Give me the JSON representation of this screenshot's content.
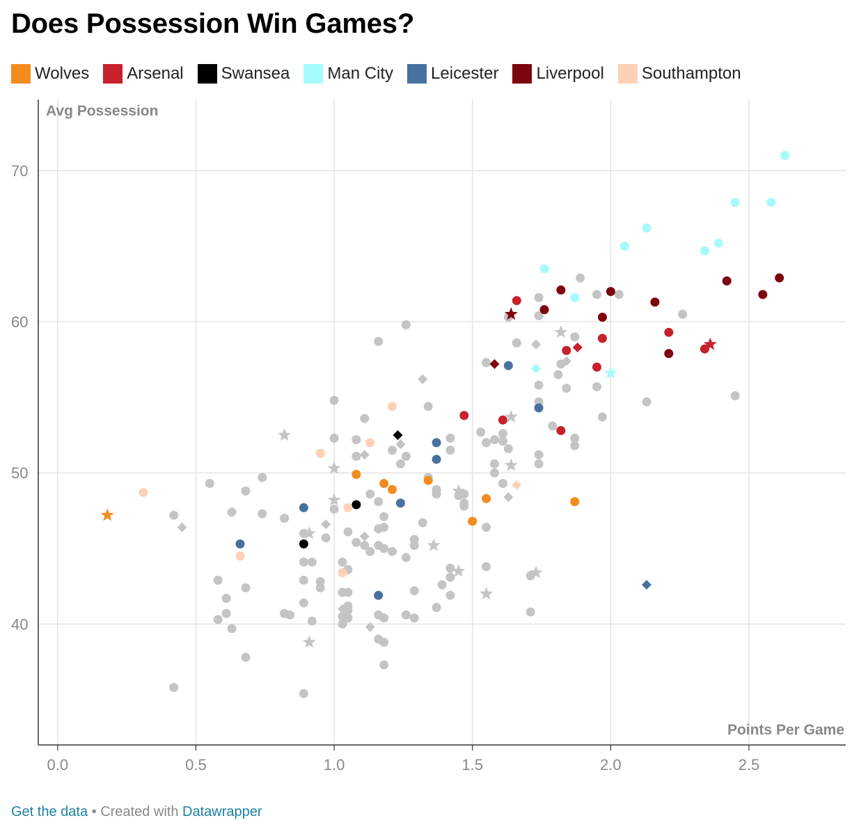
{
  "title": "Does Possession Win Games?",
  "legend": [
    {
      "label": "Wolves",
      "color": "#f28c1f"
    },
    {
      "label": "Arsenal",
      "color": "#c8202c"
    },
    {
      "label": "Swansea",
      "color": "#000000"
    },
    {
      "label": "Man City",
      "color": "#a6fafb"
    },
    {
      "label": "Leicester",
      "color": "#4772a0"
    },
    {
      "label": "Liverpool",
      "color": "#7d0510"
    },
    {
      "label": "Southampton",
      "color": "#fdd1b6"
    }
  ],
  "footer": {
    "get_data": "Get the data",
    "separator": " • Created with ",
    "datawrapper": "Datawrapper"
  },
  "chart_data": {
    "type": "scatter",
    "title": "Does Possession Win Games?",
    "xlabel": "Points Per Game",
    "ylabel": "Avg Possession",
    "xlim": [
      -0.07,
      2.85
    ],
    "ylim": [
      32.0,
      74.7
    ],
    "xticks": [
      "0.0",
      "0.5",
      "1.0",
      "1.5",
      "2.0",
      "2.5"
    ],
    "xtick_values": [
      0,
      0.5,
      1.0,
      1.5,
      2.0,
      2.5
    ],
    "yticks": [
      "40",
      "50",
      "60",
      "70"
    ],
    "ytick_values": [
      40,
      50,
      60,
      70
    ],
    "grid": true,
    "other_color": "#c4c4c4",
    "series": [
      {
        "name": "Other",
        "color": "#c4c4c4",
        "points": [
          [
            0.42,
            35.8,
            "c"
          ],
          [
            0.42,
            47.2,
            "c"
          ],
          [
            0.45,
            46.4,
            "d"
          ],
          [
            0.55,
            49.3,
            "c"
          ],
          [
            0.58,
            42.9,
            "c"
          ],
          [
            0.58,
            40.3,
            "c"
          ],
          [
            0.61,
            41.7,
            "c"
          ],
          [
            0.61,
            40.7,
            "c"
          ],
          [
            0.63,
            47.4,
            "c"
          ],
          [
            0.63,
            39.7,
            "c"
          ],
          [
            0.68,
            48.8,
            "c"
          ],
          [
            0.68,
            42.4,
            "c"
          ],
          [
            0.68,
            37.8,
            "c"
          ],
          [
            0.74,
            49.7,
            "c"
          ],
          [
            0.74,
            47.3,
            "c"
          ],
          [
            0.82,
            52.5,
            "s"
          ],
          [
            0.82,
            47.0,
            "c"
          ],
          [
            0.82,
            40.7,
            "c"
          ],
          [
            0.84,
            40.6,
            "c"
          ],
          [
            0.89,
            46.0,
            "c"
          ],
          [
            0.89,
            44.1,
            "c"
          ],
          [
            0.89,
            42.9,
            "c"
          ],
          [
            0.89,
            41.4,
            "c"
          ],
          [
            0.89,
            35.4,
            "c"
          ],
          [
            0.91,
            46.0,
            "s"
          ],
          [
            0.91,
            38.8,
            "s"
          ],
          [
            0.92,
            44.1,
            "c"
          ],
          [
            0.92,
            40.2,
            "c"
          ],
          [
            0.95,
            42.8,
            "c"
          ],
          [
            0.95,
            42.4,
            "c"
          ],
          [
            0.97,
            46.6,
            "d"
          ],
          [
            0.97,
            45.7,
            "c"
          ],
          [
            1.0,
            54.8,
            "c"
          ],
          [
            1.0,
            52.3,
            "c"
          ],
          [
            1.0,
            50.3,
            "s"
          ],
          [
            1.0,
            48.2,
            "s"
          ],
          [
            1.0,
            47.6,
            "c"
          ],
          [
            1.03,
            44.1,
            "c"
          ],
          [
            1.03,
            43.4,
            "c"
          ],
          [
            1.03,
            42.1,
            "c"
          ],
          [
            1.03,
            41.0,
            "d"
          ],
          [
            1.03,
            40.5,
            "c"
          ],
          [
            1.03,
            40.0,
            "c"
          ],
          [
            1.05,
            46.1,
            "c"
          ],
          [
            1.05,
            43.6,
            "c"
          ],
          [
            1.05,
            42.1,
            "c"
          ],
          [
            1.05,
            41.2,
            "c"
          ],
          [
            1.05,
            40.9,
            "c"
          ],
          [
            1.05,
            40.4,
            "c"
          ],
          [
            1.08,
            52.2,
            "c"
          ],
          [
            1.08,
            51.1,
            "c"
          ],
          [
            1.08,
            45.4,
            "c"
          ],
          [
            1.11,
            53.6,
            "c"
          ],
          [
            1.11,
            51.2,
            "d"
          ],
          [
            1.11,
            45.8,
            "d"
          ],
          [
            1.11,
            45.2,
            "c"
          ],
          [
            1.13,
            48.6,
            "c"
          ],
          [
            1.13,
            44.8,
            "c"
          ],
          [
            1.13,
            39.8,
            "d"
          ],
          [
            1.16,
            58.7,
            "c"
          ],
          [
            1.16,
            48.1,
            "c"
          ],
          [
            1.16,
            46.3,
            "c"
          ],
          [
            1.16,
            45.2,
            "c"
          ],
          [
            1.16,
            40.6,
            "c"
          ],
          [
            1.16,
            39.0,
            "c"
          ],
          [
            1.18,
            47.1,
            "c"
          ],
          [
            1.18,
            46.4,
            "c"
          ],
          [
            1.18,
            45.0,
            "c"
          ],
          [
            1.18,
            40.4,
            "c"
          ],
          [
            1.18,
            38.8,
            "c"
          ],
          [
            1.18,
            37.3,
            "c"
          ],
          [
            1.21,
            51.5,
            "c"
          ],
          [
            1.21,
            44.8,
            "c"
          ],
          [
            1.24,
            51.9,
            "d"
          ],
          [
            1.24,
            50.6,
            "c"
          ],
          [
            1.26,
            59.8,
            "c"
          ],
          [
            1.26,
            51.1,
            "c"
          ],
          [
            1.26,
            44.4,
            "c"
          ],
          [
            1.26,
            40.6,
            "c"
          ],
          [
            1.29,
            45.6,
            "c"
          ],
          [
            1.29,
            45.2,
            "c"
          ],
          [
            1.29,
            42.2,
            "c"
          ],
          [
            1.29,
            40.4,
            "c"
          ],
          [
            1.32,
            56.2,
            "d"
          ],
          [
            1.32,
            46.7,
            "c"
          ],
          [
            1.34,
            54.4,
            "c"
          ],
          [
            1.34,
            49.7,
            "c"
          ],
          [
            1.36,
            45.2,
            "s"
          ],
          [
            1.37,
            48.9,
            "c"
          ],
          [
            1.37,
            48.6,
            "c"
          ],
          [
            1.37,
            41.1,
            "c"
          ],
          [
            1.39,
            42.6,
            "c"
          ],
          [
            1.42,
            52.3,
            "c"
          ],
          [
            1.42,
            51.5,
            "c"
          ],
          [
            1.42,
            43.7,
            "c"
          ],
          [
            1.42,
            43.1,
            "c"
          ],
          [
            1.42,
            41.9,
            "c"
          ],
          [
            1.45,
            48.8,
            "s"
          ],
          [
            1.45,
            48.5,
            "c"
          ],
          [
            1.45,
            43.5,
            "s"
          ],
          [
            1.47,
            48.6,
            "c"
          ],
          [
            1.47,
            48.0,
            "c"
          ],
          [
            1.47,
            47.8,
            "c"
          ],
          [
            1.53,
            52.7,
            "c"
          ],
          [
            1.55,
            57.3,
            "c"
          ],
          [
            1.55,
            52.0,
            "c"
          ],
          [
            1.55,
            46.4,
            "c"
          ],
          [
            1.55,
            43.8,
            "c"
          ],
          [
            1.55,
            42.0,
            "s"
          ],
          [
            1.58,
            52.2,
            "c"
          ],
          [
            1.58,
            50.6,
            "c"
          ],
          [
            1.58,
            50.0,
            "c"
          ],
          [
            1.61,
            52.6,
            "c"
          ],
          [
            1.61,
            52.1,
            "c"
          ],
          [
            1.61,
            49.3,
            "c"
          ],
          [
            1.63,
            60.3,
            "c"
          ],
          [
            1.63,
            51.6,
            "c"
          ],
          [
            1.63,
            48.4,
            "d"
          ],
          [
            1.64,
            53.7,
            "s"
          ],
          [
            1.64,
            50.5,
            "s"
          ],
          [
            1.66,
            58.6,
            "c"
          ],
          [
            1.71,
            43.2,
            "c"
          ],
          [
            1.71,
            40.8,
            "c"
          ],
          [
            1.73,
            58.5,
            "d"
          ],
          [
            1.73,
            43.4,
            "s"
          ],
          [
            1.74,
            61.6,
            "c"
          ],
          [
            1.74,
            60.4,
            "c"
          ],
          [
            1.74,
            55.8,
            "c"
          ],
          [
            1.74,
            54.7,
            "c"
          ],
          [
            1.74,
            51.2,
            "c"
          ],
          [
            1.74,
            50.6,
            "c"
          ],
          [
            1.79,
            53.1,
            "c"
          ],
          [
            1.81,
            56.5,
            "c"
          ],
          [
            1.82,
            59.3,
            "s"
          ],
          [
            1.82,
            57.2,
            "c"
          ],
          [
            1.84,
            57.4,
            "d"
          ],
          [
            1.84,
            55.6,
            "c"
          ],
          [
            1.87,
            59.0,
            "c"
          ],
          [
            1.87,
            52.3,
            "c"
          ],
          [
            1.87,
            51.8,
            "c"
          ],
          [
            1.89,
            62.9,
            "c"
          ],
          [
            1.95,
            61.8,
            "c"
          ],
          [
            1.95,
            55.7,
            "c"
          ],
          [
            1.97,
            53.7,
            "c"
          ],
          [
            2.03,
            61.8,
            "c"
          ],
          [
            2.13,
            54.7,
            "c"
          ],
          [
            2.26,
            60.5,
            "c"
          ],
          [
            2.45,
            55.1,
            "c"
          ]
        ]
      },
      {
        "name": "Wolves",
        "color": "#f28c1f",
        "points": [
          [
            0.18,
            47.2,
            "s"
          ],
          [
            1.08,
            49.9,
            "c"
          ],
          [
            1.18,
            49.3,
            "c"
          ],
          [
            1.21,
            48.9,
            "c"
          ],
          [
            1.34,
            49.5,
            "c"
          ],
          [
            1.5,
            46.8,
            "c"
          ],
          [
            1.55,
            48.3,
            "c"
          ],
          [
            1.87,
            48.1,
            "c"
          ]
        ]
      },
      {
        "name": "Arsenal",
        "color": "#c8202c",
        "points": [
          [
            1.47,
            53.8,
            "c"
          ],
          [
            1.61,
            53.5,
            "c"
          ],
          [
            1.66,
            61.4,
            "c"
          ],
          [
            1.82,
            52.8,
            "c"
          ],
          [
            1.84,
            58.1,
            "c"
          ],
          [
            1.88,
            58.3,
            "d"
          ],
          [
            1.95,
            57.0,
            "c"
          ],
          [
            1.97,
            58.9,
            "c"
          ],
          [
            2.21,
            59.3,
            "c"
          ],
          [
            2.34,
            58.2,
            "c"
          ],
          [
            2.36,
            58.5,
            "s"
          ]
        ]
      },
      {
        "name": "Swansea",
        "color": "#000000",
        "points": [
          [
            0.89,
            45.3,
            "c"
          ],
          [
            1.08,
            47.9,
            "c"
          ],
          [
            1.23,
            52.5,
            "d"
          ]
        ]
      },
      {
        "name": "Man City",
        "color": "#a6fafb",
        "points": [
          [
            1.73,
            56.9,
            "d"
          ],
          [
            1.76,
            63.5,
            "c"
          ],
          [
            1.87,
            61.6,
            "c"
          ],
          [
            2.0,
            56.6,
            "s"
          ],
          [
            2.05,
            65.0,
            "c"
          ],
          [
            2.13,
            66.2,
            "c"
          ],
          [
            2.34,
            64.7,
            "c"
          ],
          [
            2.39,
            65.2,
            "c"
          ],
          [
            2.45,
            67.9,
            "c"
          ],
          [
            2.58,
            67.9,
            "c"
          ],
          [
            2.63,
            71.0,
            "c"
          ]
        ]
      },
      {
        "name": "Leicester",
        "color": "#4772a0",
        "points": [
          [
            0.66,
            45.3,
            "c"
          ],
          [
            0.89,
            47.7,
            "c"
          ],
          [
            1.16,
            41.9,
            "c"
          ],
          [
            1.24,
            48.0,
            "c"
          ],
          [
            1.37,
            52.0,
            "c"
          ],
          [
            1.37,
            50.9,
            "c"
          ],
          [
            1.63,
            57.1,
            "c"
          ],
          [
            1.74,
            54.3,
            "c"
          ],
          [
            2.13,
            42.6,
            "d"
          ]
        ]
      },
      {
        "name": "Liverpool",
        "color": "#7d0510",
        "points": [
          [
            1.58,
            57.2,
            "d"
          ],
          [
            1.64,
            60.5,
            "s"
          ],
          [
            1.76,
            60.8,
            "c"
          ],
          [
            1.82,
            62.1,
            "c"
          ],
          [
            1.97,
            60.3,
            "c"
          ],
          [
            2.0,
            62.0,
            "c"
          ],
          [
            2.16,
            61.3,
            "c"
          ],
          [
            2.21,
            57.9,
            "c"
          ],
          [
            2.42,
            62.7,
            "c"
          ],
          [
            2.55,
            61.8,
            "c"
          ],
          [
            2.61,
            62.9,
            "c"
          ]
        ]
      },
      {
        "name": "Southampton",
        "color": "#fdd1b6",
        "points": [
          [
            0.31,
            48.7,
            "c"
          ],
          [
            0.66,
            44.5,
            "c"
          ],
          [
            0.95,
            51.3,
            "c"
          ],
          [
            1.03,
            43.4,
            "c"
          ],
          [
            1.05,
            47.7,
            "c"
          ],
          [
            1.13,
            52.0,
            "c"
          ],
          [
            1.21,
            54.4,
            "c"
          ],
          [
            1.66,
            49.2,
            "d"
          ]
        ]
      }
    ]
  }
}
